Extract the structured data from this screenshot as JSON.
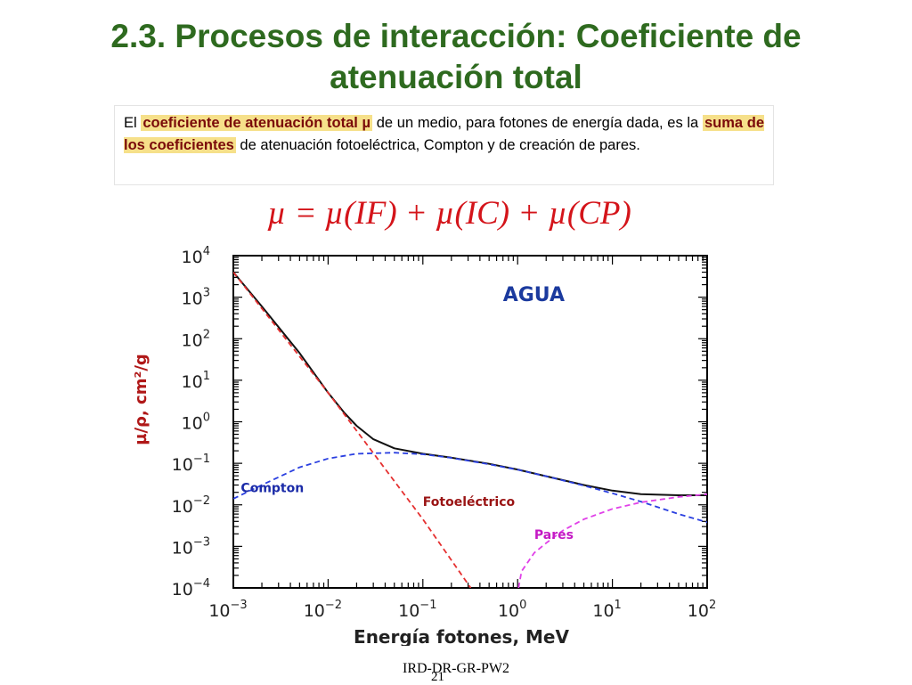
{
  "slide": {
    "title": "2.3. Procesos de interacción: Coeficiente de atenuación total",
    "paragraph": {
      "t1": "El ",
      "h1": "coeficiente de atenuación total µ",
      "t2": " de un medio, para fotones de energía dada, es la ",
      "h2": "suma de los coeficientes",
      "t3": " de atenuación fotoeléctrica, Compton y de creación de pares."
    },
    "formula": "µ = µ(IF) + µ(IC) + µ(CP)",
    "footer": "IRD-DR-GR-PW2",
    "page_number": "21"
  },
  "colors": {
    "title": "#2e6a1f",
    "highlight_text": "#7a0a0a",
    "highlight_bg": "#f6e08a",
    "formula": "#d4141a",
    "total": "#111111",
    "fotoelectrico": "#e53030",
    "compton": "#2a3fe0",
    "pares": "#e040e8",
    "ylabel": "#b01818"
  },
  "chart_data": {
    "type": "line",
    "title": "AGUA",
    "xlabel": "Energía fotones, MeV",
    "ylabel": "µ/ρ, cm²/g",
    "xscale": "log",
    "yscale": "log",
    "xlim": [
      0.001,
      100
    ],
    "ylim": [
      0.0001,
      10000
    ],
    "x_ticks": [
      {
        "base": "10",
        "exp": "−3"
      },
      {
        "base": "10",
        "exp": "−2"
      },
      {
        "base": "10",
        "exp": "−1"
      },
      {
        "base": "10",
        "exp": "0"
      },
      {
        "base": "10",
        "exp": "1"
      },
      {
        "base": "10",
        "exp": "2"
      }
    ],
    "y_ticks": [
      {
        "base": "10",
        "exp": "4"
      },
      {
        "base": "10",
        "exp": "3"
      },
      {
        "base": "10",
        "exp": "2"
      },
      {
        "base": "10",
        "exp": "1"
      },
      {
        "base": "10",
        "exp": "0"
      },
      {
        "base": "10",
        "exp": "−1"
      },
      {
        "base": "10",
        "exp": "−2"
      },
      {
        "base": "10",
        "exp": "−3"
      },
      {
        "base": "10",
        "exp": "−4"
      }
    ],
    "series": [
      {
        "key": "total",
        "style": "solid",
        "x": [
          0.001,
          0.002,
          0.005,
          0.01,
          0.015,
          0.02,
          0.03,
          0.05,
          0.1,
          0.2,
          0.5,
          1,
          2,
          5,
          10,
          20,
          50,
          100
        ],
        "y": [
          4000,
          600,
          45,
          5,
          1.6,
          0.8,
          0.38,
          0.23,
          0.17,
          0.137,
          0.097,
          0.071,
          0.049,
          0.03,
          0.022,
          0.018,
          0.017,
          0.017
        ]
      },
      {
        "key": "fotoelectrico",
        "name": "Fotoeléctrico",
        "style": "dashed",
        "x": [
          0.001,
          0.01,
          0.1,
          0.32
        ],
        "y": [
          4000,
          5,
          0.0045,
          0.0001
        ]
      },
      {
        "key": "compton",
        "name": "Compton",
        "style": "dashed",
        "x": [
          0.001,
          0.002,
          0.005,
          0.01,
          0.02,
          0.05,
          0.1,
          0.2,
          0.5,
          1,
          2,
          5,
          10,
          20,
          50,
          100
        ],
        "y": [
          0.014,
          0.03,
          0.08,
          0.13,
          0.17,
          0.18,
          0.165,
          0.135,
          0.095,
          0.07,
          0.049,
          0.029,
          0.019,
          0.012,
          0.006,
          0.0038
        ]
      },
      {
        "key": "pares",
        "name": "Pares",
        "style": "dashed",
        "x": [
          1.022,
          1.1,
          1.5,
          2,
          3,
          5,
          10,
          20,
          50,
          100
        ],
        "y": [
          0.0001,
          0.00025,
          0.0007,
          0.0012,
          0.0024,
          0.0045,
          0.008,
          0.0115,
          0.0155,
          0.018
        ]
      }
    ],
    "annotations": [
      {
        "text": "Compton",
        "x": 0.0012,
        "y": 0.02,
        "color": "#1b2ba8"
      },
      {
        "text": "Fotoeléctrico",
        "x": 0.1,
        "y": 0.0095,
        "color": "#9a1414"
      },
      {
        "text": "Pares",
        "x": 1.5,
        "y": 0.0015,
        "color": "#c419c4"
      }
    ]
  }
}
